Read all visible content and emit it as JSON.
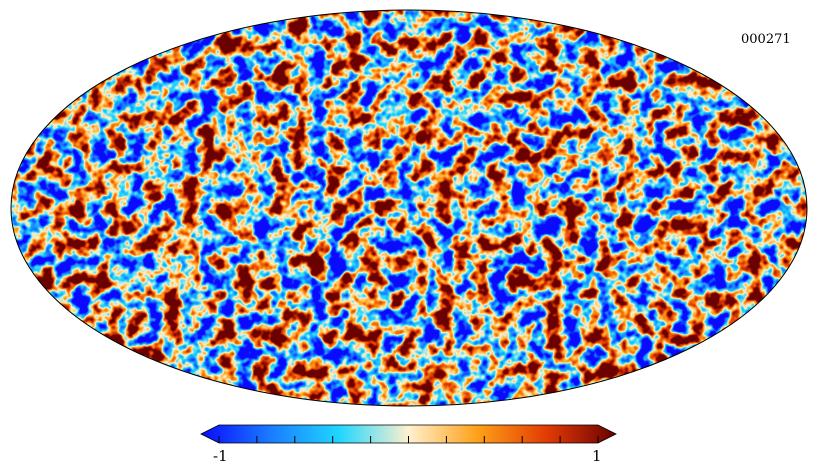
{
  "map": {
    "projection": "mollweide",
    "map_id": "000271",
    "colormap": "planck",
    "colormap_stops": [
      "#0a0aff",
      "#1a7bff",
      "#1fd7ff",
      "#fff1cf",
      "#ffa017",
      "#e23b04",
      "#6a0000"
    ]
  },
  "colorbar": {
    "min_label": "-1",
    "max_label": "1",
    "min": -1,
    "max": 1,
    "tick_count": 11,
    "extend": "both"
  }
}
